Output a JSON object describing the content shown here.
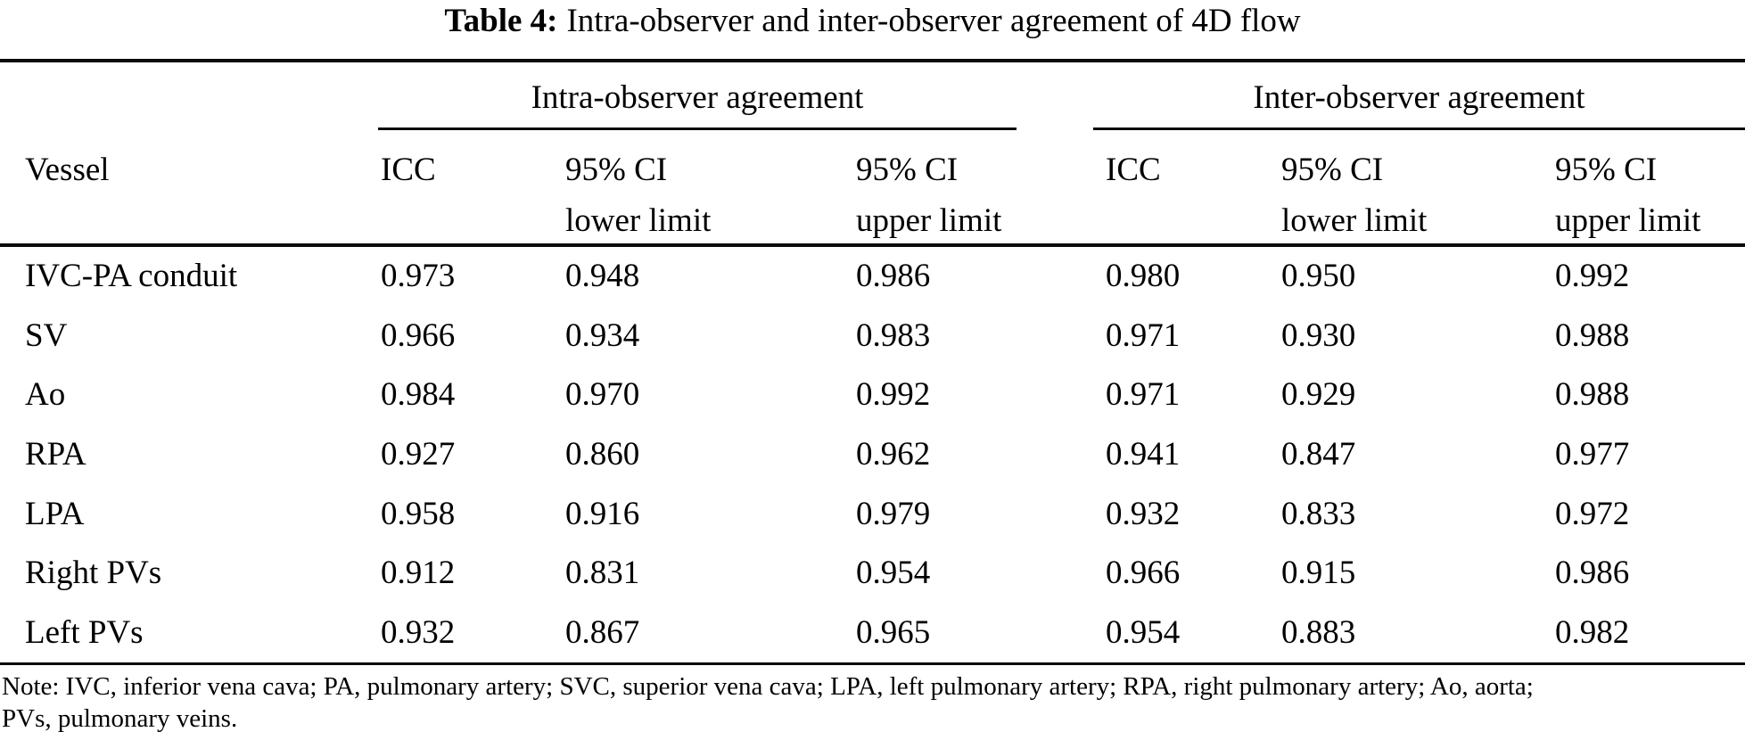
{
  "title": {
    "label": "Table 4:",
    "text": "Intra-observer and inter-observer agreement of 4D flow"
  },
  "table": {
    "group_headers": {
      "intra": "Intra-observer agreement",
      "inter": "Inter-observer agreement"
    },
    "columns": {
      "vessel": "Vessel",
      "icc": "ICC",
      "ci_line1": "95% CI",
      "ci_lower_line2": "lower limit",
      "ci_upper_line2": "upper limit"
    },
    "rows": [
      {
        "vessel": "IVC-PA conduit",
        "intra_icc": "0.973",
        "intra_lower": "0.948",
        "intra_upper": "0.986",
        "inter_icc": "0.980",
        "inter_lower": "0.950",
        "inter_upper": "0.992"
      },
      {
        "vessel": "SV",
        "intra_icc": "0.966",
        "intra_lower": "0.934",
        "intra_upper": "0.983",
        "inter_icc": "0.971",
        "inter_lower": "0.930",
        "inter_upper": "0.988"
      },
      {
        "vessel": "Ao",
        "intra_icc": "0.984",
        "intra_lower": "0.970",
        "intra_upper": "0.992",
        "inter_icc": "0.971",
        "inter_lower": "0.929",
        "inter_upper": "0.988"
      },
      {
        "vessel": "RPA",
        "intra_icc": "0.927",
        "intra_lower": "0.860",
        "intra_upper": "0.962",
        "inter_icc": "0.941",
        "inter_lower": "0.847",
        "inter_upper": "0.977"
      },
      {
        "vessel": "LPA",
        "intra_icc": "0.958",
        "intra_lower": "0.916",
        "intra_upper": "0.979",
        "inter_icc": "0.932",
        "inter_lower": "0.833",
        "inter_upper": "0.972"
      },
      {
        "vessel": "Right PVs",
        "intra_icc": "0.912",
        "intra_lower": "0.831",
        "intra_upper": "0.954",
        "inter_icc": "0.966",
        "inter_lower": "0.915",
        "inter_upper": "0.986"
      },
      {
        "vessel": "Left PVs",
        "intra_icc": "0.932",
        "intra_lower": "0.867",
        "intra_upper": "0.965",
        "inter_icc": "0.954",
        "inter_lower": "0.883",
        "inter_upper": "0.982"
      }
    ]
  },
  "note": {
    "line1": "Note: IVC, inferior vena cava; PA, pulmonary artery; SVC, superior vena cava; LPA, left pulmonary artery; RPA, right pulmonary artery; Ao, aorta;",
    "line2": "PVs, pulmonary veins."
  }
}
